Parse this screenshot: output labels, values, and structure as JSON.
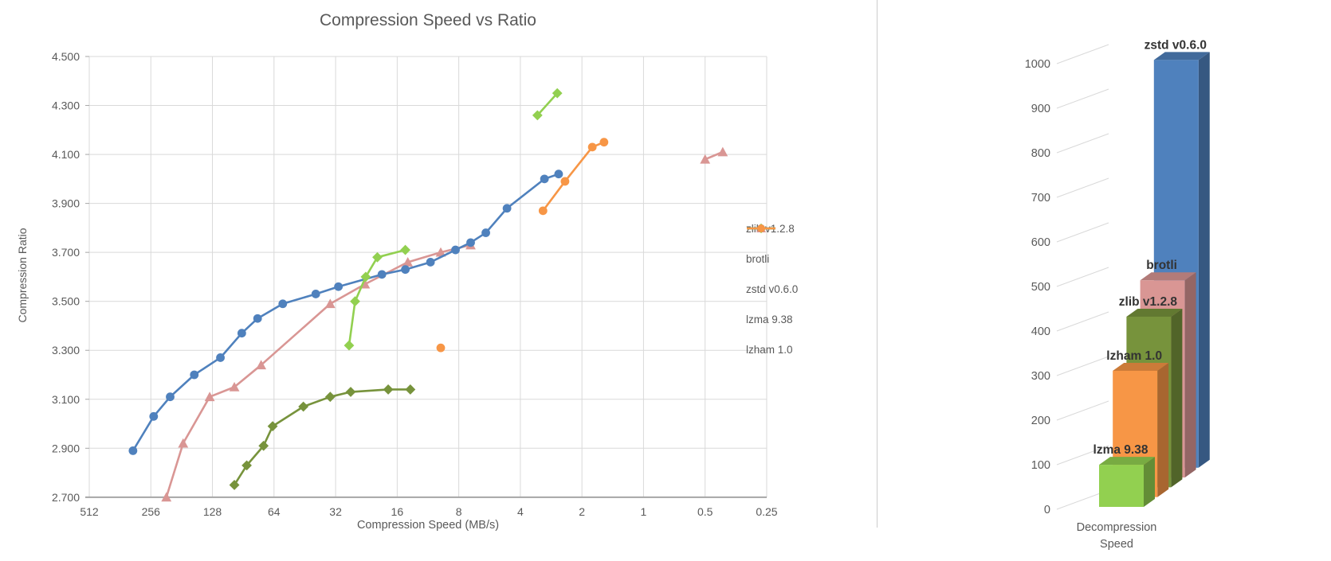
{
  "page": {
    "background": "#ffffff",
    "divider_color": "#cccccc"
  },
  "scatter_chart": {
    "title": "Compression Speed vs Ratio",
    "xlabel": "Compression Speed (MB/s)",
    "ylabel": "Compression Ratio"
  },
  "bar_chart": {
    "xlabel_line1": "Decompression",
    "xlabel_line2": "Speed"
  },
  "chart_data": [
    {
      "type": "scatter",
      "title": "Compression Speed vs Ratio",
      "xlabel": "Compression Speed (MB/s)",
      "ylabel": "Compression Ratio",
      "x_scale": "log2_reversed",
      "x_ticks": [
        512,
        256,
        128,
        64,
        32,
        16,
        8,
        4,
        2,
        1,
        0.5,
        0.25
      ],
      "x_tick_labels": [
        "512",
        "256",
        "128",
        "64",
        "32",
        "16",
        "8",
        "4",
        "2",
        "1",
        "0.5",
        "0.25"
      ],
      "ylim": [
        2.7,
        4.5
      ],
      "y_tick_labels": [
        "4.500",
        "4.300",
        "4.100",
        "3.900",
        "3.700",
        "3.500",
        "3.300",
        "3.100",
        "2.900",
        "2.700"
      ],
      "grid": true,
      "legend_position": "right",
      "grid_color": "#d9d9d9",
      "axis_color": "#a6a6a6",
      "text_color": "#595959",
      "series": [
        {
          "name": "zlib v1.2.8",
          "color": "#77933C",
          "marker": "diamond",
          "segments": [
            [
              [
                100,
                2.75
              ],
              [
                87,
                2.83
              ],
              [
                72,
                2.91
              ],
              [
                65,
                2.99
              ],
              [
                46,
                3.07
              ],
              [
                34,
                3.11
              ],
              [
                27,
                3.13
              ],
              [
                17.7,
                3.14
              ],
              [
                13.8,
                3.14
              ]
            ]
          ]
        },
        {
          "name": "brotli",
          "color": "#D99694",
          "marker": "triangle",
          "segments": [
            [
              [
                215,
                2.7
              ],
              [
                178,
                2.92
              ],
              [
                132,
                3.11
              ],
              [
                100,
                3.15
              ],
              [
                74,
                3.24
              ],
              [
                34,
                3.49
              ],
              [
                23,
                3.57
              ],
              [
                14.2,
                3.66
              ],
              [
                9.8,
                3.7
              ],
              [
                7,
                3.73
              ]
            ],
            [
              [
                0.5,
                4.08
              ],
              [
                0.41,
                4.11
              ]
            ]
          ]
        },
        {
          "name": "zstd v0.6.0",
          "color": "#4F81BD",
          "marker": "circle",
          "segments": [
            [
              [
                313,
                2.89
              ],
              [
                248,
                3.03
              ],
              [
                206,
                3.11
              ],
              [
                157,
                3.2
              ],
              [
                117,
                3.27
              ],
              [
                92,
                3.37
              ],
              [
                77,
                3.43
              ],
              [
                58,
                3.49
              ],
              [
                40,
                3.53
              ],
              [
                31,
                3.56
              ],
              [
                19,
                3.61
              ],
              [
                14.6,
                3.63
              ],
              [
                11,
                3.66
              ],
              [
                8.3,
                3.71
              ],
              [
                7,
                3.74
              ],
              [
                5.9,
                3.78
              ],
              [
                4.65,
                3.88
              ],
              [
                3.05,
                4.0
              ],
              [
                2.6,
                4.02
              ]
            ]
          ]
        },
        {
          "name": "lzma 9.38",
          "color": "#92D050",
          "marker": "diamond",
          "segments": [
            [
              [
                27.5,
                3.32
              ],
              [
                25.7,
                3.5
              ],
              [
                22.8,
                3.6
              ],
              [
                20,
                3.68
              ],
              [
                14.6,
                3.71
              ]
            ],
            [
              [
                3.3,
                4.26
              ],
              [
                2.64,
                4.35
              ]
            ]
          ]
        },
        {
          "name": "lzham 1.0",
          "color": "#F79646",
          "marker": "circle",
          "segments": [
            [
              [
                9.8,
                3.31
              ]
            ],
            [
              [
                3.1,
                3.87
              ],
              [
                2.42,
                3.99
              ],
              [
                1.78,
                4.13
              ],
              [
                1.56,
                4.15
              ]
            ]
          ]
        }
      ]
    },
    {
      "type": "bar",
      "style": "3d",
      "xlabel": "Decompression Speed",
      "categories": [
        "lzma 9.38",
        "lzham 1.0",
        "zlib v1.2.8",
        "brotli",
        "zstd v0.6.0"
      ],
      "values": [
        95,
        285,
        385,
        445,
        920
      ],
      "colors": [
        "#92D050",
        "#F79646",
        "#77933C",
        "#D99694",
        "#4F81BD"
      ],
      "ylim": [
        0,
        1000
      ],
      "y_tick_step": 100,
      "grid": true,
      "label_color": "#333333",
      "text_color": "#595959"
    }
  ]
}
